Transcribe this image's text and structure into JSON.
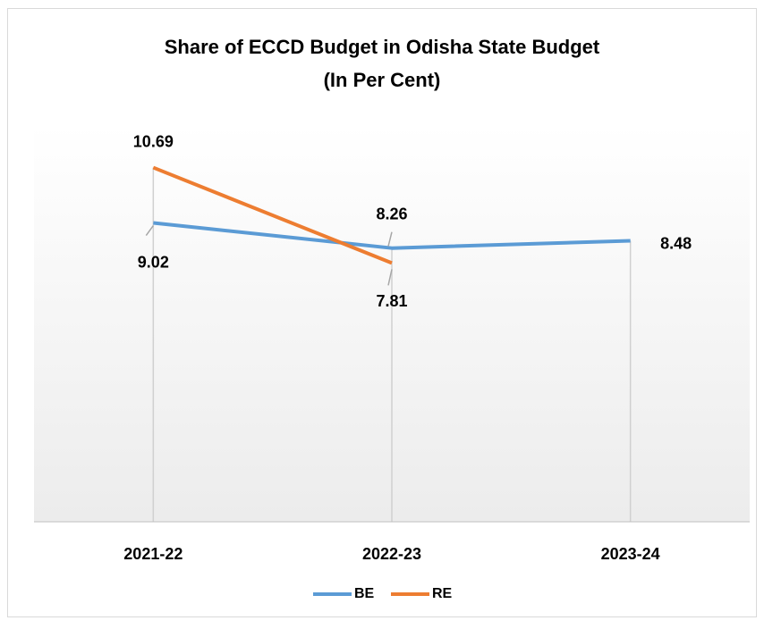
{
  "chart_data": {
    "type": "line",
    "title": [
      "Share of ECCD Budget in Odisha State Budget",
      "(In Per Cent)"
    ],
    "categories": [
      "2021-22",
      "2022-23",
      "2023-24"
    ],
    "series": [
      {
        "name": "BE",
        "color": "#5b9bd5",
        "values": [
          9.02,
          8.26,
          8.48
        ]
      },
      {
        "name": "RE",
        "color": "#ed7d31",
        "values": [
          10.69,
          7.81,
          null
        ]
      }
    ],
    "ylim": [
      0,
      12
    ],
    "legend": "bottom"
  }
}
